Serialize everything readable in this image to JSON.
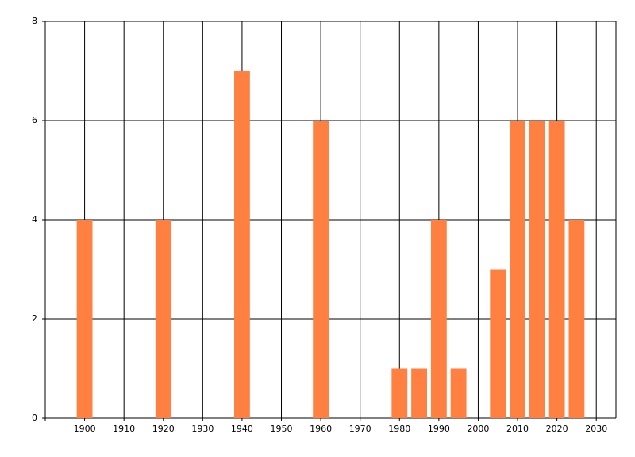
{
  "chart_data": {
    "type": "bar",
    "x": [
      1900,
      1920,
      1940,
      1960,
      1980,
      1985,
      1990,
      1995,
      2005,
      2010,
      2015,
      2020,
      2025
    ],
    "values": [
      4,
      4,
      7,
      6,
      1,
      1,
      4,
      1,
      3,
      6,
      6,
      6,
      4
    ],
    "color": "#ff8040",
    "xlim": [
      1890,
      2035
    ],
    "xticks": [
      1900,
      1910,
      1920,
      1930,
      1940,
      1950,
      1960,
      1970,
      1980,
      1990,
      2000,
      2010,
      2020,
      2030
    ],
    "ylim": [
      0,
      8
    ],
    "yticks": [
      0,
      2,
      4,
      6,
      8
    ],
    "grid": true
  }
}
